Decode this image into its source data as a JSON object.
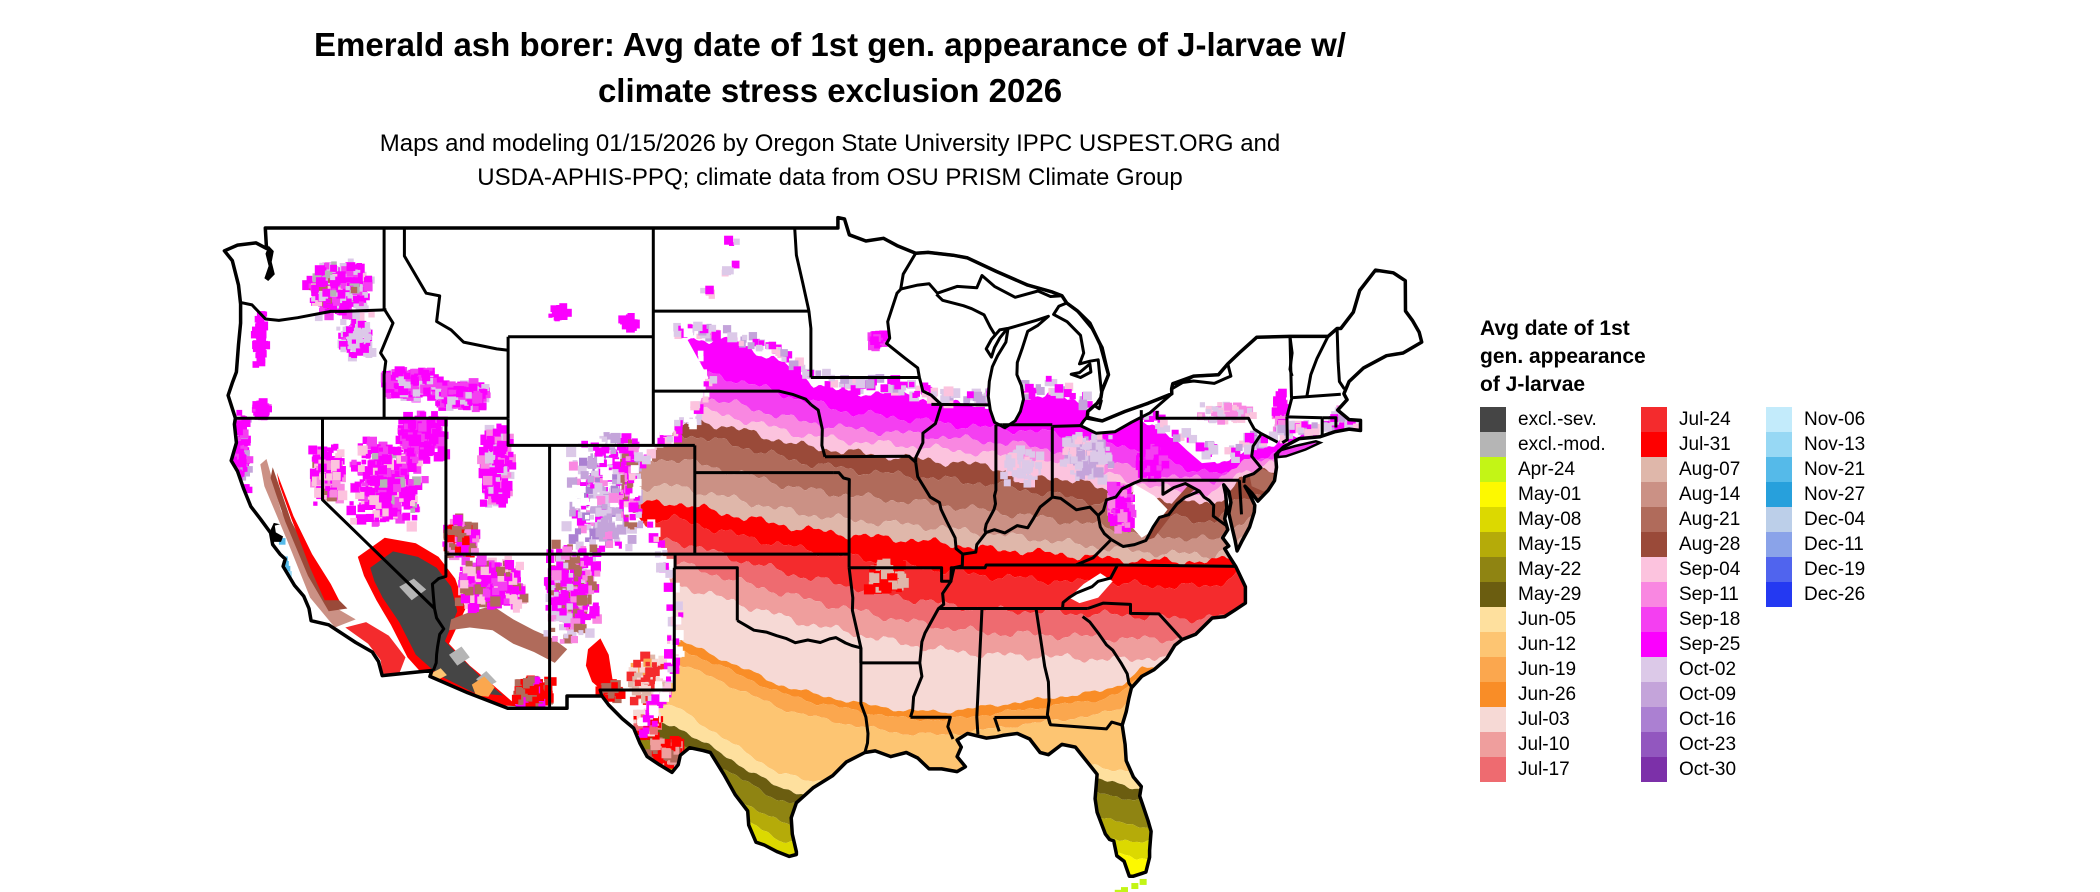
{
  "header": {
    "title_line1": "Emerald ash borer: Avg date of 1st gen. appearance of J-larvae w/",
    "title_line2": "climate stress exclusion 2026",
    "subtitle_line1": "Maps and modeling 01/15/2026 by Oregon State University IPPC USPEST.ORG and",
    "subtitle_line2": "USDA-APHIS-PPQ; climate data from OSU PRISM Climate Group"
  },
  "legend": {
    "title_lines": [
      "Avg date of 1st",
      "gen. appearance",
      "of J-larvae"
    ],
    "columns": [
      [
        {
          "label": "excl.-sev.",
          "color": "#454545"
        },
        {
          "label": "excl.-mod.",
          "color": "#b5b5b5"
        },
        {
          "label": "Apr-24",
          "color": "#c3f516"
        },
        {
          "label": "May-01",
          "color": "#fdf900"
        },
        {
          "label": "May-08",
          "color": "#dcd900"
        },
        {
          "label": "May-15",
          "color": "#b5ab09"
        },
        {
          "label": "May-22",
          "color": "#8f8412"
        },
        {
          "label": "May-29",
          "color": "#6b5d10"
        },
        {
          "label": "Jun-05",
          "color": "#fee09e"
        },
        {
          "label": "Jun-12",
          "color": "#fdc572"
        },
        {
          "label": "Jun-19",
          "color": "#fba74e"
        },
        {
          "label": "Jun-26",
          "color": "#f98d27"
        },
        {
          "label": "Jul-03",
          "color": "#f6d9d5"
        },
        {
          "label": "Jul-10",
          "color": "#ef9e9d"
        },
        {
          "label": "Jul-17",
          "color": "#ee6b70"
        }
      ],
      [
        {
          "label": "Jul-24",
          "color": "#f42b2d"
        },
        {
          "label": "Jul-31",
          "color": "#fe0000"
        },
        {
          "label": "Aug-07",
          "color": "#dfb7aa"
        },
        {
          "label": "Aug-14",
          "color": "#cb9185"
        },
        {
          "label": "Aug-21",
          "color": "#b06b5b"
        },
        {
          "label": "Aug-28",
          "color": "#9a4a39"
        },
        {
          "label": "Sep-04",
          "color": "#fcc3de"
        },
        {
          "label": "Sep-11",
          "color": "#f987e1"
        },
        {
          "label": "Sep-18",
          "color": "#f43ff1"
        },
        {
          "label": "Sep-25",
          "color": "#fb00fe"
        },
        {
          "label": "Oct-02",
          "color": "#dcc9e8"
        },
        {
          "label": "Oct-09",
          "color": "#c4a4da"
        },
        {
          "label": "Oct-16",
          "color": "#ab80d2"
        },
        {
          "label": "Oct-23",
          "color": "#9257bf"
        },
        {
          "label": "Oct-30",
          "color": "#7c30a9"
        }
      ],
      [
        {
          "label": "Nov-06",
          "color": "#c3ebfb"
        },
        {
          "label": "Nov-13",
          "color": "#97d8f4"
        },
        {
          "label": "Nov-21",
          "color": "#55bae9"
        },
        {
          "label": "Nov-27",
          "color": "#27a0dc"
        },
        {
          "label": "Dec-04",
          "color": "#bccfe9"
        },
        {
          "label": "Dec-11",
          "color": "#8aa3e9"
        },
        {
          "label": "Dec-19",
          "color": "#5064ee"
        },
        {
          "label": "Dec-26",
          "color": "#2439f2"
        }
      ]
    ]
  },
  "map": {
    "region": "Contiguous United States",
    "background": "#ffffff",
    "border_color": "#000000"
  }
}
